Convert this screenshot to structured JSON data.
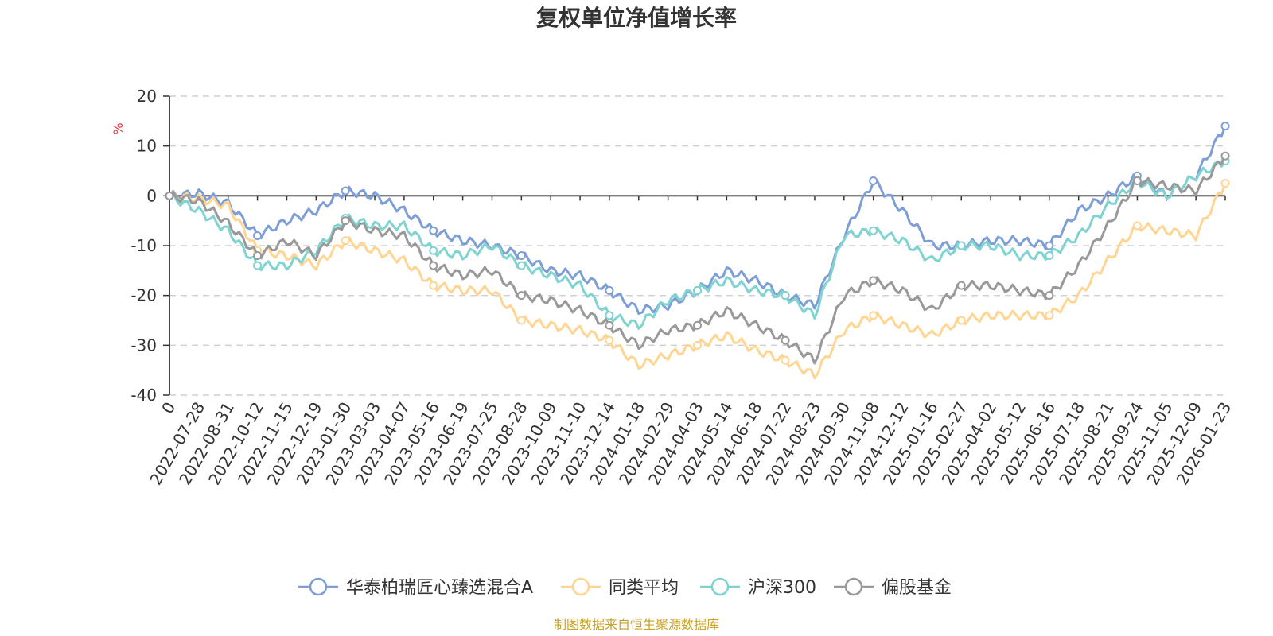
{
  "chart_data": {
    "type": "line",
    "title": "复权单位净值增长率",
    "ylabel": "%",
    "xlabel": "",
    "ylim": [
      -40,
      20
    ],
    "yticks": [
      20,
      10,
      0,
      -10,
      -20,
      -30,
      -40
    ],
    "grid": true,
    "legend_position": "bottom-center",
    "source": "制图数据来自恒生聚源数据库",
    "categories": [
      "0",
      "2022-07-28",
      "2022-08-31",
      "2022-10-12",
      "2022-11-15",
      "2022-12-19",
      "2023-01-30",
      "2023-03-03",
      "2023-04-07",
      "2023-05-16",
      "2023-06-19",
      "2023-07-25",
      "2023-08-28",
      "2023-10-09",
      "2023-11-10",
      "2023-12-14",
      "2024-01-18",
      "2024-02-29",
      "2024-04-03",
      "2024-05-14",
      "2024-06-18",
      "2024-07-22",
      "2024-08-23",
      "2024-09-30",
      "2024-11-08",
      "2024-12-12",
      "2025-01-16",
      "2025-02-27",
      "2025-04-02",
      "2025-05-12",
      "2025-06-16",
      "2025-07-18",
      "2025-08-21",
      "2025-09-24",
      "2025-11-05",
      "2025-12-09",
      "2026-01-23"
    ],
    "series": [
      {
        "name": "华泰柏瑞匠心臻选混合A",
        "color": "#7e9fd6",
        "values": [
          0,
          0.5,
          -1.5,
          -8,
          -5,
          -3,
          1,
          0,
          -3,
          -7,
          -9,
          -10,
          -12,
          -15,
          -16,
          -19,
          -23,
          -22,
          -19,
          -15,
          -17,
          -20,
          -22,
          -8,
          3,
          -3,
          -10,
          -10,
          -9,
          -9,
          -10,
          -3,
          0,
          4,
          0,
          4,
          14
        ]
      },
      {
        "name": "同类平均",
        "color": "#ffd591",
        "values": [
          0,
          -0.5,
          -2,
          -11,
          -12,
          -14,
          -9,
          -11,
          -13,
          -18,
          -19,
          -19,
          -25,
          -26,
          -27,
          -29,
          -34,
          -32,
          -30,
          -28,
          -31,
          -33,
          -36,
          -27,
          -24,
          -26,
          -28,
          -25,
          -24,
          -24,
          -24,
          -20,
          -13,
          -6,
          -7,
          -8,
          2.5
        ]
      },
      {
        "name": "沪深300",
        "color": "#7fd3d1",
        "values": [
          0,
          -3,
          -7,
          -14,
          -14,
          -11,
          -4.5,
          -6,
          -6,
          -11,
          -12,
          -10,
          -14,
          -16,
          -18,
          -24,
          -26,
          -21,
          -19,
          -17,
          -19,
          -20,
          -24,
          -8,
          -7,
          -9,
          -13,
          -10,
          -10,
          -12,
          -12,
          -8,
          -2,
          3,
          0,
          4,
          7
        ]
      },
      {
        "name": "偏股基金",
        "color": "#999999",
        "values": [
          0,
          -1,
          -5.5,
          -12,
          -9,
          -12,
          -5,
          -7,
          -8,
          -14,
          -16,
          -15,
          -20,
          -21,
          -23,
          -26,
          -30,
          -27,
          -26,
          -23,
          -26,
          -29,
          -33,
          -20,
          -17,
          -19,
          -23,
          -18,
          -18,
          -19,
          -20,
          -14,
          -6,
          3,
          2,
          1,
          8
        ]
      }
    ]
  }
}
